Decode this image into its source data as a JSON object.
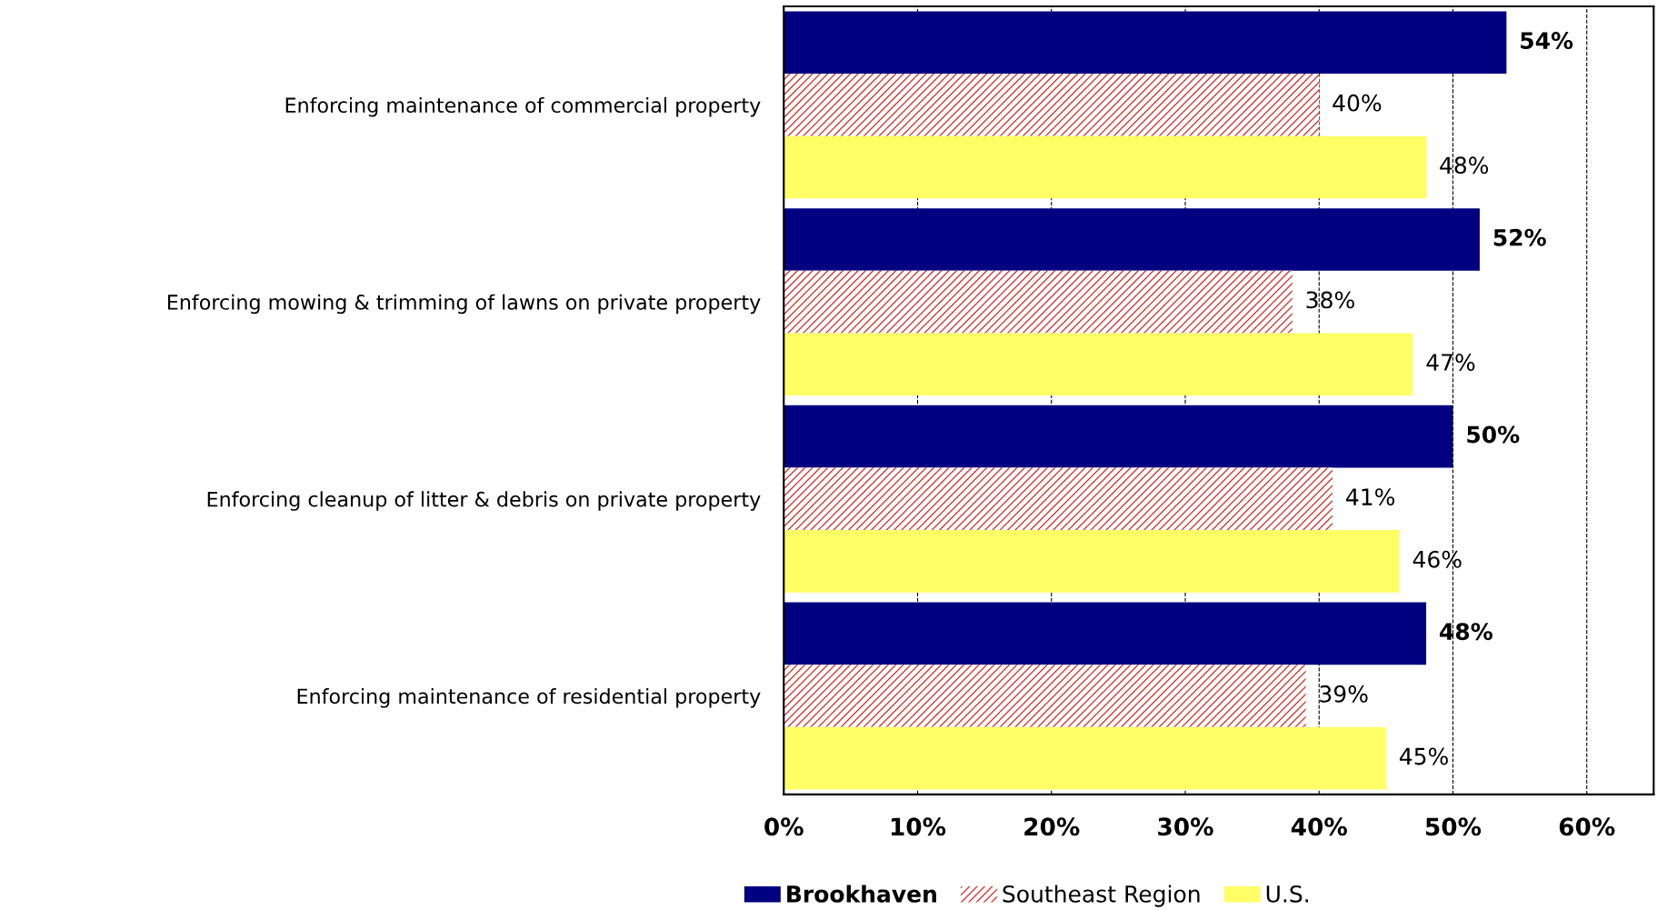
{
  "chart_data": {
    "type": "bar",
    "orientation": "horizontal",
    "categories": [
      "Enforcing maintenance of commercial property",
      "Enforcing mowing & trimming of lawns on private property",
      "Enforcing cleanup of litter & debris on private property",
      "Enforcing maintenance of residential property"
    ],
    "series": [
      {
        "name": "Brookhaven",
        "color": "#000080",
        "values": [
          54,
          52,
          50,
          48
        ],
        "value_labels": [
          "54%",
          "52%",
          "50%",
          "48%"
        ]
      },
      {
        "name": "Southeast Region",
        "color": "#ff0000",
        "values": [
          40,
          38,
          41,
          39
        ],
        "value_labels": [
          "40%",
          "38%",
          "41%",
          "39%"
        ]
      },
      {
        "name": "U.S.",
        "color": "#ffff66",
        "values": [
          48,
          47,
          46,
          45
        ],
        "value_labels": [
          "48%",
          "47%",
          "46%",
          "45%"
        ]
      }
    ],
    "xlim": [
      0,
      65
    ],
    "xticks": [
      {
        "value": 0,
        "label": "0%"
      },
      {
        "value": 10,
        "label": "10%"
      },
      {
        "value": 20,
        "label": "20%"
      },
      {
        "value": 30,
        "label": "30%"
      },
      {
        "value": 40,
        "label": "40%"
      },
      {
        "value": 50,
        "label": "50%"
      },
      {
        "value": 60,
        "label": "60%"
      }
    ],
    "grid": "x",
    "line_style": "dashed",
    "legend": "bottom"
  }
}
